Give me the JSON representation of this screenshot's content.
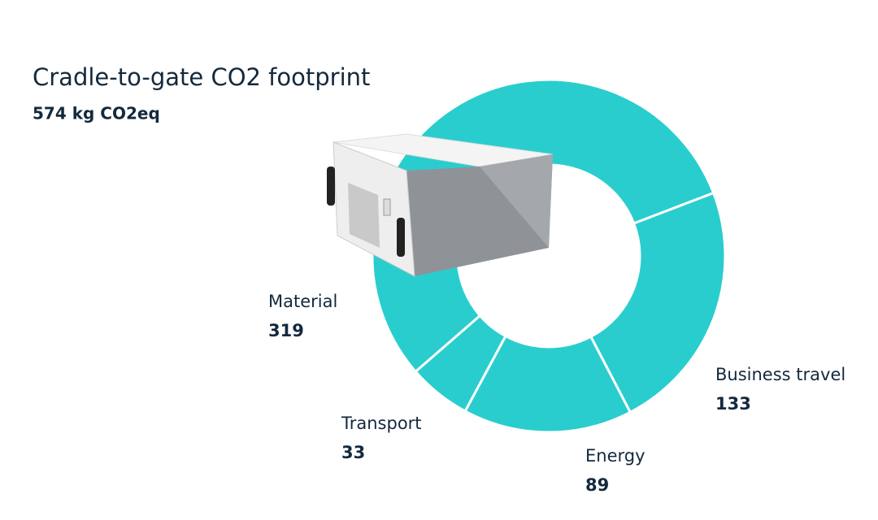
{
  "chart_data": {
    "type": "pie",
    "donut": true,
    "title": "Cradle-to-gate CO2 footprint",
    "subtitle": "574 kg CO2eq",
    "categories": [
      "Material",
      "Business travel",
      "Energy",
      "Transport"
    ],
    "values": [
      319,
      133,
      89,
      33
    ],
    "color": "#2acdce"
  }
}
